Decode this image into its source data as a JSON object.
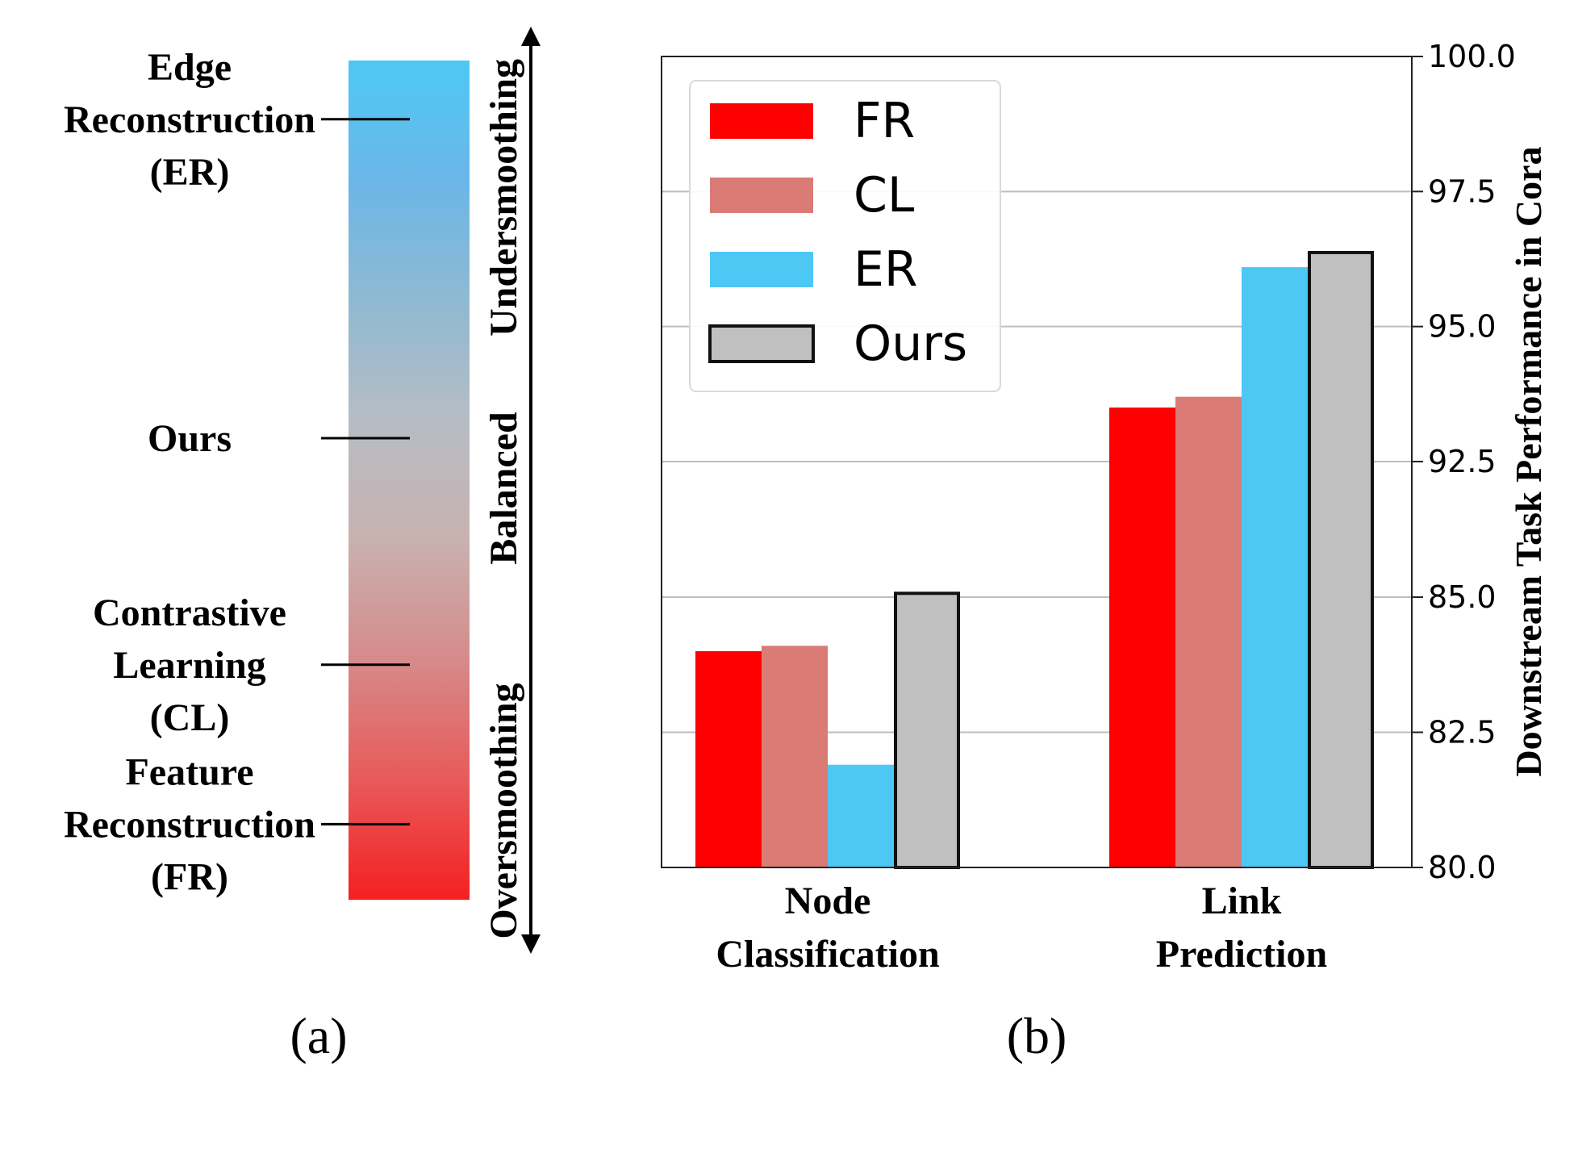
{
  "panel_a": {
    "caption": "(a)",
    "methods": [
      {
        "lines": [
          "Edge",
          "Reconstruction",
          "(ER)"
        ],
        "position": 0.07
      },
      {
        "lines": [
          "Ours"
        ],
        "position": 0.45
      },
      {
        "lines": [
          "Contrastive",
          "Learning",
          "(CL)"
        ],
        "position": 0.72
      },
      {
        "lines": [
          "Feature",
          "Reconstruction",
          "(FR)"
        ],
        "position": 0.91
      }
    ],
    "gradient_colors": [
      "#4ec8f4",
      "#6bb6e8",
      "#8fb9d2",
      "#b6bcc4",
      "#c8b2b0",
      "#d68a8a",
      "#e85a5a",
      "#f52020"
    ],
    "axis_labels": [
      {
        "text": "Undersmoothing",
        "region": "top"
      },
      {
        "text": "Balanced",
        "region": "middle"
      },
      {
        "text": "Oversmoothing",
        "region": "bottom"
      }
    ]
  },
  "chart_data": {
    "type": "bar",
    "caption": "(b)",
    "categories": [
      [
        "Node",
        "Classification"
      ],
      [
        "Link",
        "Prediction"
      ]
    ],
    "series": [
      {
        "name": "FR",
        "color": "#ff0000",
        "outlined": false,
        "values": [
          84.0,
          93.5
        ]
      },
      {
        "name": "CL",
        "color": "#db7b76",
        "outlined": false,
        "values": [
          84.1,
          93.7
        ]
      },
      {
        "name": "ER",
        "color": "#4dc8f4",
        "outlined": false,
        "values": [
          81.9,
          96.1
        ]
      },
      {
        "name": "Ours",
        "color": "#c0c0c0",
        "outlined": true,
        "values": [
          85.3,
          96.4
        ]
      }
    ],
    "ylabel": "Downstream Task Performance in Cora",
    "ytick_labels": [
      "80.0",
      "82.5",
      "85.0",
      "92.5",
      "95.0",
      "97.5",
      "100.0"
    ],
    "axis_break": {
      "lower_segment": [
        80.0,
        85.0
      ],
      "upper_segment": [
        92.5,
        100.0
      ]
    },
    "grid": true,
    "legend_placement": "top-left",
    "yaxis_side": "right"
  }
}
